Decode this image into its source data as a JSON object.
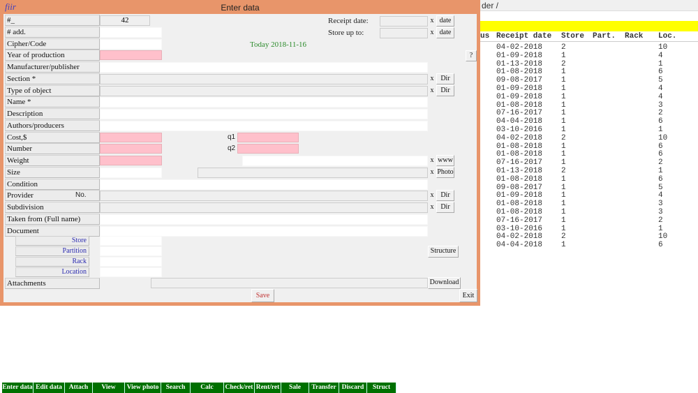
{
  "background": {
    "path": "der /",
    "columns": [
      "us",
      "Receipt date",
      "Store",
      "Part.",
      "Rack",
      "Loc."
    ],
    "rows": [
      [
        "04-02-2018",
        "2",
        "10"
      ],
      [
        "01-09-2018",
        "1",
        "4"
      ],
      [
        "01-13-2018",
        "2",
        "1"
      ],
      [
        "01-08-2018",
        "1",
        "6"
      ],
      [
        "09-08-2017",
        "1",
        "5"
      ],
      [
        "01-09-2018",
        "1",
        "4"
      ],
      [
        "01-09-2018",
        "1",
        "4"
      ],
      [
        "01-08-2018",
        "1",
        "3"
      ],
      [
        "07-16-2017",
        "1",
        "2"
      ],
      [
        "04-04-2018",
        "1",
        "6"
      ],
      [
        "03-10-2016",
        "1",
        "1"
      ],
      [
        "04-02-2018",
        "2",
        "10"
      ],
      [
        "01-08-2018",
        "1",
        "6"
      ],
      [
        "01-08-2018",
        "1",
        "6"
      ],
      [
        "07-16-2017",
        "1",
        "2"
      ],
      [
        "01-13-2018",
        "2",
        "1"
      ],
      [
        "01-08-2018",
        "1",
        "6"
      ],
      [
        "09-08-2017",
        "1",
        "5"
      ],
      [
        "01-09-2018",
        "1",
        "4"
      ],
      [
        "01-08-2018",
        "1",
        "3"
      ],
      [
        "01-08-2018",
        "1",
        "3"
      ],
      [
        "07-16-2017",
        "1",
        "2"
      ],
      [
        "03-10-2016",
        "1",
        "1"
      ],
      [
        "04-02-2018",
        "2",
        "10"
      ],
      [
        "04-04-2018",
        "1",
        "6"
      ]
    ]
  },
  "dialog": {
    "title": "Enter data",
    "logo": "fiir",
    "record_no": "42",
    "today": "Today 2018-11-16",
    "receipt_date_label": "Receipt date:",
    "store_up_to_label": "Store up to:",
    "date_btn": "date",
    "x_btn": "x",
    "help_btn": "?",
    "labels": [
      "#_",
      "# add.",
      "Cipher/Code",
      "Year of production",
      "Manufacturer/publisher",
      "Section *",
      "Type of object",
      "Name *",
      "Description",
      "Authors/producers",
      "Cost,$",
      "Number",
      "Weight",
      "Size",
      "Condition",
      "Provider",
      "Subdivision",
      "Taken from (Full name)",
      "Document"
    ],
    "provider_no": "No.",
    "q1": "q1",
    "q2": "q2",
    "dir_btn": "Dir",
    "www_btn": "www",
    "photo_btn": "Photo",
    "sub_labels": [
      "Store",
      "Partition",
      "Rack",
      "Location"
    ],
    "structure_btn": "Structure",
    "attachments_label": "Attachments",
    "download_btn": "Download",
    "save_btn": "Save",
    "exit_btn": "Exit"
  },
  "taskbar": [
    "Enter data",
    "Edit data",
    "Attach",
    "View",
    "View photo",
    "Search",
    "Calc",
    "Check/ret",
    "Rent/ret",
    "Sale",
    "Transfer",
    "Discard",
    "Struct"
  ],
  "colors": {
    "title_bar": "#e8956a",
    "required_field": "#ffc0cb",
    "taskbar": "#007000",
    "highlight": "#ffff00"
  }
}
